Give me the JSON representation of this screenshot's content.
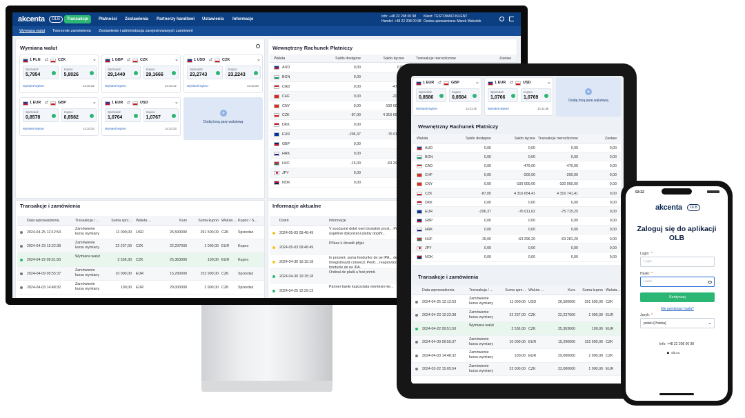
{
  "brand": {
    "name": "akcenta",
    "badge": "OLB"
  },
  "nav": [
    "Transakcje",
    "Płatności",
    "Zestawienia",
    "Partnerzy handlowi",
    "Ustawienia",
    "Informacje"
  ],
  "contact": [
    "Info: +48 22 208 00 98",
    "Handel: +48 22 208 00 98"
  ],
  "client": [
    "Klient: TESTOWACI KLIENT",
    "Osoba upoważniona: Marek Malcolek"
  ],
  "subnav": [
    "Wymiana walut",
    "Tworzenie zamówienia",
    "Zestawienie i administracja zarejestrowanych zamówień"
  ],
  "exchange": {
    "title": "Wymiana walut",
    "sell_label": "Sprzedaż",
    "buy_label": "Kupno",
    "chart_link": "Wyświetl wykres",
    "add_label": "Dodaj inną parę walutową",
    "cards": [
      {
        "from": "1 PLN",
        "to": "CZK",
        "sell": "5,7954",
        "buy": "5,8026",
        "time": "14:10:22"
      },
      {
        "from": "1 GBP",
        "to": "CZK",
        "sell": "29,1440",
        "buy": "29,1666",
        "time": "14:10:12"
      },
      {
        "from": "1 USD",
        "to": "CZK",
        "sell": "23,2743",
        "buy": "23,2243",
        "time": "14:10:23"
      },
      {
        "from": "1 EUR",
        "to": "GBP",
        "sell": "0,8578",
        "buy": "0,8582",
        "time": "14:10:24"
      },
      {
        "from": "1 EUR",
        "to": "USD",
        "sell": "1,0764",
        "buy": "1,0767",
        "time": "14:10:23"
      }
    ],
    "tablet_cards": [
      {
        "from": "1 EUR",
        "to": "GBP",
        "sell": "0,8580",
        "buy": "0,8584",
        "time": "14:11:40"
      },
      {
        "from": "1 EUR",
        "to": "USD",
        "sell": "1,0766",
        "buy": "1,0769",
        "time": "14:11:38"
      }
    ]
  },
  "account": {
    "title": "Wewnętrzny Rachunek Płatniczy",
    "columns": [
      "Waluta",
      "Saldo dostępne",
      "Saldo łączne",
      "Transakcje nierozliczone",
      "Zastaw"
    ],
    "rows": [
      [
        "AUD",
        "0,00",
        "0,00",
        "0,00",
        "0,00"
      ],
      [
        "BGN",
        "0,00",
        "0,00",
        "0,00",
        "0,00"
      ],
      [
        "CAD",
        "0,00",
        "-470,00",
        "-470,00",
        "0,00"
      ],
      [
        "CHF",
        "0,00",
        "-200,00",
        "-200,00",
        "0,00"
      ],
      [
        "CNY",
        "0,00",
        "-100 000,00",
        "-100 000,00",
        "0,00"
      ],
      [
        "CZK",
        "-87,00",
        "4 316 654,41",
        "4 316 741,41",
        "0,00"
      ],
      [
        "DKK",
        "0,00",
        "0,00",
        "0,00",
        "0,00"
      ],
      [
        "EUR",
        "-296,37",
        "-76 011,62",
        "-75 715,25",
        "0,00"
      ],
      [
        "GBP",
        "0,00",
        "0,00",
        "0,00",
        "0,00"
      ],
      [
        "HRK",
        "0,00",
        "0,00",
        "0,00",
        "0,00"
      ],
      [
        "HUF",
        "-15,00",
        "-63 296,20",
        "-63 281,20",
        "0,00"
      ],
      [
        "JPY",
        "0,00",
        "0,00",
        "0,00",
        "0,00"
      ],
      [
        "NOK",
        "0,00",
        "0,00",
        "0,00",
        "0,00"
      ]
    ]
  },
  "transactions": {
    "title": "Transakcje i zamówienia",
    "columns": [
      "Data wprowadzenia",
      "Transakcja / ...",
      "Suma sprz...",
      "Waluta ...",
      "Kurs",
      "Suma kupno",
      "Waluta ...",
      "Kupno / S..."
    ],
    "rows": [
      [
        "2024-04-25 12:12:53",
        "Zamówienie kursu wymiany",
        "11 000,00",
        "USD",
        "26,500000",
        "291 500,00",
        "CZK",
        "Sprzedaż"
      ],
      [
        "2024-04-23 12:22:38",
        "Zamówienie kursu wymiany",
        "22 237,00",
        "CZK",
        "22,237000",
        "1 000,00",
        "EUR",
        "Kupno"
      ],
      [
        "2024-04-22 09:51:50",
        "Wymiana walut",
        "2 536,30",
        "CZK",
        "25,363000",
        "100,00",
        "EUR",
        "Kupno"
      ],
      [
        "2024-04-09 09:55:37",
        "Zamówienie kursu wymiany",
        "10 000,00",
        "EUR",
        "15,290000",
        "152 900,00",
        "CZK",
        "Sprzedaż"
      ],
      [
        "2024-04-03 14:48:32",
        "Zamówienie kursu wymiany",
        "100,00",
        "EUR",
        "29,000000",
        "2 900,00",
        "CZK",
        "Sprzedaż"
      ],
      [
        "2024-03-22 15:05:54",
        "Zamówienie kursu wymiany",
        "23 000,00",
        "CZK",
        "23,000000",
        "1 000,00",
        "EUR",
        "Kupno"
      ]
    ]
  },
  "info": {
    "title": "Informacje aktualne",
    "columns": [
      "Dzień",
      "Informacje"
    ],
    "rows": [
      [
        "2024-05-03 09:46:49",
        "V současné době není dostatek prost... Pro úspěšné dokončení platby doplňt..."
      ],
      [
        "2024-05-03 09:46:49",
        "Příkaz k úhradě přijat."
      ],
      [
        "2024-04-30 10:15:18",
        "În prezent, suma fondurilor de pe IPA... debit; se înregistrează comenzi. Pentr... reaprovizionați fondurile de pe IPA."
      ],
      [
        "2024-04-30 10:15:18",
        "Ordinul de plată a fost primit."
      ],
      [
        "2024-04-25 12:29:13",
        "Partner banki kapcsolata mentésre ke..."
      ]
    ]
  },
  "login": {
    "time": "02:22",
    "title": "Zaloguj się do aplikacji OLB",
    "login_label": "Login:",
    "login_placeholder": "Login",
    "password_label": "Hasło:",
    "password_placeholder": "Hasło",
    "button": "Kontynuuj",
    "forgot": "Nie pamiętasz hasła?",
    "language_label": "Język:",
    "language": "polski (Polska)",
    "info": "Info: +48 22 208 00 98",
    "url": "olb.eu"
  }
}
